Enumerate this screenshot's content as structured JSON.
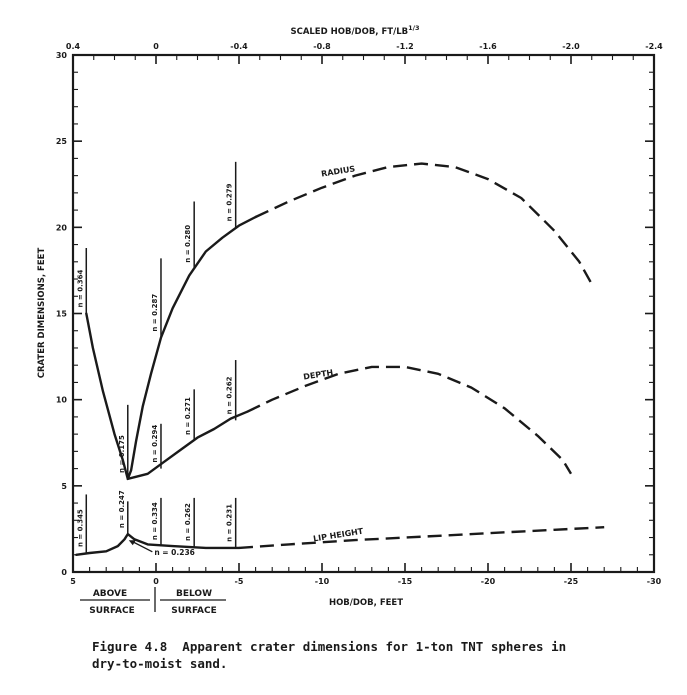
{
  "caption": {
    "line1": "Figure 4.8  Apparent crater dimensions for 1-ton TNT spheres in",
    "line2": "dry-to-moist sand."
  },
  "chart_data": {
    "type": "line",
    "xlabel": "HOB/DOB, FEET",
    "ylabel": "CRATER DIMENSIONS, FEET",
    "x2label": "SCALED HOB/DOB, FT/LB",
    "x2label_superscript": "1/3",
    "xlim": [
      5,
      -30
    ],
    "ylim": [
      0,
      30
    ],
    "x2lim": [
      0.4,
      -2.4
    ],
    "xticks": [
      5,
      0,
      -5,
      -10,
      -15,
      -20,
      -25,
      -30
    ],
    "xtick_labels": [
      "5",
      "0",
      "-5",
      "-10",
      "-15",
      "-20",
      "-25",
      "-30"
    ],
    "yticks": [
      0,
      5,
      10,
      15,
      20,
      25,
      30
    ],
    "ytick_labels": [
      "0",
      "5",
      "10",
      "15",
      "20",
      "25",
      "30"
    ],
    "x2ticks": [
      0.4,
      0,
      -0.4,
      -0.8,
      -1.2,
      -1.6,
      -2.0,
      -2.4
    ],
    "x2tick_labels": [
      "0.4",
      "0",
      "-0.4",
      "-0.8",
      "-1.2",
      "-1.6",
      "-2.0",
      "-2.4"
    ],
    "grid": false,
    "series": [
      {
        "name": "RADIUS",
        "label_at": [
          -11,
          23.1
        ],
        "solid": [
          [
            4.2,
            15.0
          ],
          [
            3.8,
            13.0
          ],
          [
            3.2,
            10.5
          ],
          [
            2.5,
            8.0
          ],
          [
            2.0,
            6.5
          ],
          [
            1.7,
            5.4
          ],
          [
            1.5,
            5.9
          ],
          [
            1.2,
            7.6
          ],
          [
            0.8,
            9.6
          ],
          [
            0.3,
            11.5
          ],
          [
            -0.3,
            13.6
          ],
          [
            -1.0,
            15.3
          ],
          [
            -2.0,
            17.2
          ],
          [
            -3.0,
            18.6
          ],
          [
            -4.0,
            19.4
          ],
          [
            -5.0,
            20.1
          ],
          [
            -6.0,
            20.6
          ]
        ],
        "dashed": [
          [
            -6.0,
            20.6
          ],
          [
            -8.0,
            21.5
          ],
          [
            -10.0,
            22.3
          ],
          [
            -12.0,
            23.0
          ],
          [
            -14.0,
            23.5
          ],
          [
            -16.0,
            23.7
          ],
          [
            -18.0,
            23.5
          ],
          [
            -20.0,
            22.8
          ],
          [
            -22.0,
            21.7
          ],
          [
            -24.0,
            19.8
          ],
          [
            -25.5,
            18.0
          ],
          [
            -26.2,
            16.8
          ]
        ]
      },
      {
        "name": "DEPTH",
        "label_at": [
          -9.8,
          11.3
        ],
        "solid": [
          [
            1.7,
            5.4
          ],
          [
            1.3,
            5.5
          ],
          [
            0.5,
            5.7
          ],
          [
            -0.5,
            6.4
          ],
          [
            -1.5,
            7.1
          ],
          [
            -2.5,
            7.8
          ],
          [
            -3.5,
            8.3
          ],
          [
            -4.5,
            8.9
          ],
          [
            -5.5,
            9.3
          ]
        ],
        "dashed": [
          [
            -5.5,
            9.3
          ],
          [
            -7.0,
            10.0
          ],
          [
            -9.0,
            10.8
          ],
          [
            -11.0,
            11.5
          ],
          [
            -13.0,
            11.9
          ],
          [
            -15.0,
            11.9
          ],
          [
            -17.0,
            11.5
          ],
          [
            -19.0,
            10.7
          ],
          [
            -21.0,
            9.5
          ],
          [
            -23.0,
            7.9
          ],
          [
            -24.5,
            6.5
          ],
          [
            -25.0,
            5.7
          ]
        ]
      },
      {
        "name": "LIP HEIGHT",
        "label_at": [
          -11,
          2.0
        ],
        "solid": [
          [
            4.8,
            1.0
          ],
          [
            4.0,
            1.1
          ],
          [
            3.0,
            1.2
          ],
          [
            2.3,
            1.5
          ],
          [
            1.9,
            1.9
          ],
          [
            1.7,
            2.2
          ],
          [
            1.3,
            1.9
          ],
          [
            0.5,
            1.6
          ],
          [
            -1.0,
            1.5
          ],
          [
            -3.0,
            1.4
          ],
          [
            -5.0,
            1.4
          ]
        ],
        "dashed": [
          [
            -5.0,
            1.4
          ],
          [
            -8.0,
            1.6
          ],
          [
            -12.0,
            1.85
          ],
          [
            -16.0,
            2.05
          ],
          [
            -20.0,
            2.25
          ],
          [
            -24.0,
            2.45
          ],
          [
            -27.0,
            2.6
          ]
        ]
      }
    ],
    "n_markers": [
      {
        "x": 4.2,
        "ytop": 18.8,
        "ybottom": 15.0,
        "label": "n = 0.364"
      },
      {
        "x": 4.2,
        "ytop": 4.5,
        "ybottom": 1.1,
        "label": "n = 0.345"
      },
      {
        "x": 1.7,
        "ytop": 9.7,
        "ybottom": 5.4,
        "label": "n = 0.175"
      },
      {
        "x": 1.7,
        "ytop": 4.1,
        "ybottom": 2.2,
        "label": "n = 0.247"
      },
      {
        "x": -0.3,
        "ytop": 18.2,
        "ybottom": 13.6,
        "label": "n = 0.287"
      },
      {
        "x": -0.3,
        "ytop": 8.6,
        "ybottom": 6.0,
        "label": "n = 0.294"
      },
      {
        "x": -0.3,
        "ytop": 4.3,
        "ybottom": 1.5,
        "label": "n = 0.334"
      },
      {
        "x": -2.3,
        "ytop": 21.5,
        "ybottom": 17.6,
        "label": "n = 0.280"
      },
      {
        "x": -2.3,
        "ytop": 10.6,
        "ybottom": 7.6,
        "label": "n = 0.271"
      },
      {
        "x": -2.3,
        "ytop": 4.3,
        "ybottom": 1.45,
        "label": "n = 0.262"
      },
      {
        "x": -4.8,
        "ytop": 23.8,
        "ybottom": 20.0,
        "label": "n = 0.279"
      },
      {
        "x": -4.8,
        "ytop": 12.3,
        "ybottom": 8.8,
        "label": "n = 0.262"
      },
      {
        "x": -4.8,
        "ytop": 4.3,
        "ybottom": 1.4,
        "label": "n = 0.231"
      }
    ],
    "n_marker_horizontal": {
      "label": "n = 0.236",
      "at": [
        1.7,
        1.9
      ],
      "text_at": [
        0.1,
        1.0
      ]
    },
    "region_labels": {
      "above_1": "ABOVE",
      "above_2": "SURFACE",
      "below_1": "BELOW",
      "below_2": "SURFACE"
    }
  }
}
